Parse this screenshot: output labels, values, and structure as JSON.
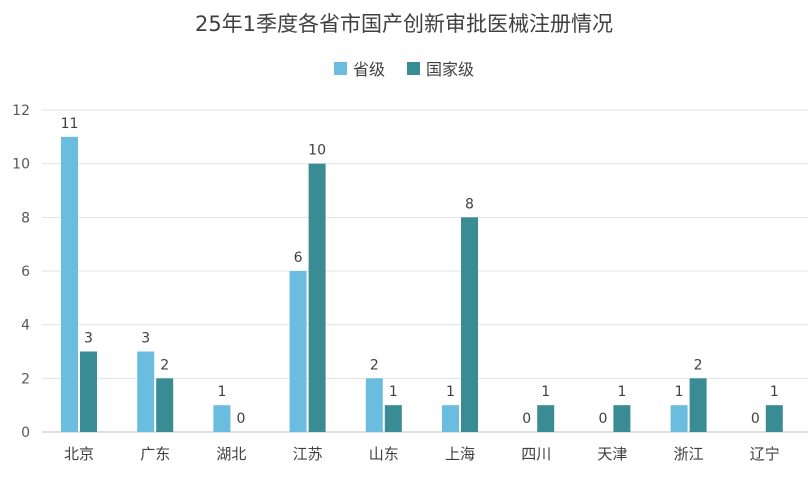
{
  "chart_data": {
    "type": "bar",
    "title": "25年1季度各省市国产创新审批医械注册情况",
    "categories": [
      "北京",
      "广东",
      "湖北",
      "江苏",
      "山东",
      "上海",
      "四川",
      "天津",
      "浙江",
      "辽宁"
    ],
    "series": [
      {
        "name": "省级",
        "color": "#6BBDE0",
        "values": [
          11,
          3,
          1,
          6,
          2,
          1,
          0,
          0,
          1,
          0
        ]
      },
      {
        "name": "国家级",
        "color": "#3A8C94",
        "values": [
          3,
          2,
          0,
          10,
          1,
          8,
          1,
          1,
          2,
          1
        ]
      }
    ],
    "ylim": [
      0,
      12
    ],
    "yticks": [
      0,
      2,
      4,
      6,
      8,
      10,
      12
    ],
    "grid": true,
    "legend_position": "top",
    "xlabel": "",
    "ylabel": ""
  }
}
